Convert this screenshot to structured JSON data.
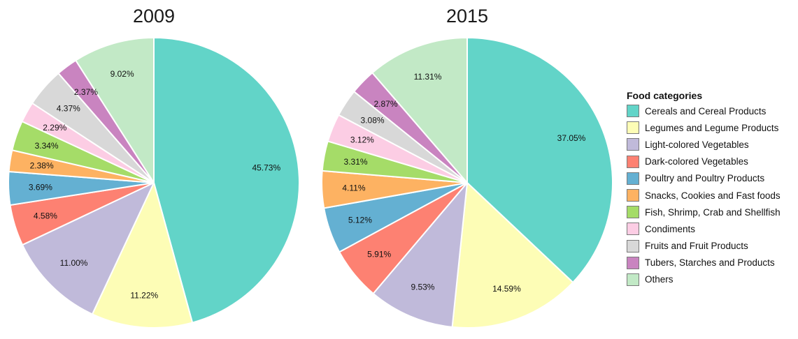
{
  "chart_data": {
    "type": "pie",
    "legend_title": "Food categories",
    "legend_placement": "right",
    "categories": [
      "Cereals and Cereal Products",
      "Legumes and Legume Products",
      "Light-colored Vegetables",
      "Dark-colored Vegetables",
      "Poultry and Poultry Products",
      "Snacks, Cookies and Fast foods",
      "Fish, Shrimp, Crab and Shellfish",
      "Condiments",
      "Fruits and Fruit Products",
      "Tubers, Starches and Products",
      "Others"
    ],
    "colors": [
      "#62d4c8",
      "#fdfdb6",
      "#c0bada",
      "#fd8172",
      "#64b0d2",
      "#fdb262",
      "#a5dc68",
      "#fccde4",
      "#d8d8d8",
      "#c984c0",
      "#c2e9c6"
    ],
    "charts": [
      {
        "title": "2009",
        "values": [
          45.73,
          11.22,
          11.0,
          4.58,
          3.69,
          2.38,
          3.34,
          2.29,
          4.37,
          2.37,
          9.02
        ],
        "labels": [
          "45.73%",
          "11.22%",
          "11.00%",
          "4.58%",
          "3.69%",
          "2.38%",
          "3.34%",
          "2.29%",
          "4.37%",
          "2.37%",
          "9.02%"
        ]
      },
      {
        "title": "2015",
        "values": [
          37.05,
          14.59,
          9.53,
          5.91,
          5.12,
          4.11,
          3.31,
          3.12,
          3.08,
          2.87,
          11.31
        ],
        "labels": [
          "37.05%",
          "14.59%",
          "9.53%",
          "5.91%",
          "5.12%",
          "4.11%",
          "3.31%",
          "3.12%",
          "3.08%",
          "2.87%",
          "11.31%"
        ]
      }
    ]
  }
}
